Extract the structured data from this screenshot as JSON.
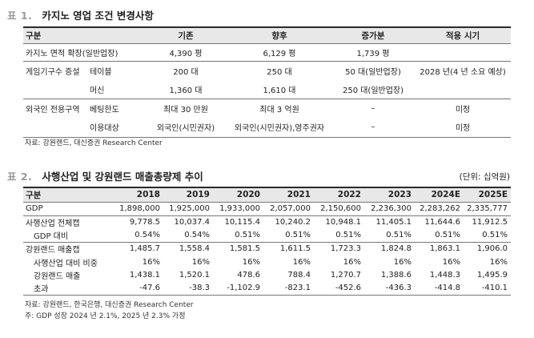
{
  "table1": {
    "number": "표 1.",
    "title": "카지노 영업 조건 변경사항",
    "headers": [
      "구분",
      "기존",
      "향후",
      "증가분",
      "적용 시기"
    ],
    "rows": [
      {
        "c1": "카지노 면적 확장(일반업장)",
        "c2": "",
        "before": "4,390 평",
        "after": "6,129 평",
        "inc": "1,739 평",
        "when": ""
      },
      {
        "c1": "게임기구수 증설",
        "c2": "테이블",
        "before": "200 대",
        "after": "250 대",
        "inc": "50 대(일반업장)",
        "when": "2028 년(4 년 소요 예상)"
      },
      {
        "c1": "",
        "c2": "머신",
        "before": "1,360 대",
        "after": "1,610 대",
        "inc": "250 대(일반업장)",
        "when": ""
      },
      {
        "c1": "외국인 전용구역",
        "c2": "베팅한도",
        "before": "최대 30 만원",
        "after": "최대 3 억원",
        "inc": "–",
        "when": "미정"
      },
      {
        "c1": "",
        "c2": "이용대상",
        "before": "외국인(시민권자)",
        "after": "외국인(시민권자),영주권자",
        "inc": "–",
        "when": "미정"
      }
    ],
    "source": "자료: 강원랜드, 대신증권 Research Center"
  },
  "table2": {
    "number": "표 2.",
    "title": "사행산업 및 강원랜드 매출총량제 추이",
    "unit": "(단위: 십억원)",
    "header_label": "구분",
    "years": [
      "2018",
      "2019",
      "2020",
      "2021",
      "2022",
      "2023",
      "2024E",
      "2025E"
    ],
    "rows": [
      {
        "label": "GDP",
        "values": [
          "1,898,000",
          "1,925,000",
          "1,933,000",
          "2,057,000",
          "2,150,600",
          "2,236,300",
          "2,283,262",
          "2,335,777"
        ]
      },
      {
        "label": "사행산업 전체캡",
        "values": [
          "9,778.5",
          "10,037.4",
          "10,115.4",
          "10,240.2",
          "10,948.1",
          "11,405.1",
          "11,644.6",
          "11,912.5"
        ]
      },
      {
        "label": "GDP 대비",
        "values": [
          "0.54%",
          "0.54%",
          "0.51%",
          "0.51%",
          "0.51%",
          "0.51%",
          "0.51%",
          "0.51%"
        ]
      },
      {
        "label": "강원랜드 매출캡",
        "values": [
          "1,485.7",
          "1,558.4",
          "1,581.5",
          "1,611.5",
          "1,723.3",
          "1,824.8",
          "1,863.1",
          "1,906.0"
        ]
      },
      {
        "label": "사행산업 대비 비중",
        "values": [
          "16%",
          "16%",
          "16%",
          "16%",
          "16%",
          "16%",
          "16%",
          "16%"
        ]
      },
      {
        "label": "강원랜드 매출",
        "values": [
          "1,438.1",
          "1,520.1",
          "478.6",
          "788.4",
          "1,270.7",
          "1,388.6",
          "1,448.3",
          "1,495.9"
        ]
      },
      {
        "label": "초과",
        "values": [
          "-47.6",
          "-38.3",
          "-1,102.9",
          "-823.1",
          "-452.6",
          "-436.3",
          "-414.8",
          "-410.1"
        ]
      }
    ],
    "source": "자료: 강원랜드, 한국은행, 대신증권 Research Center",
    "footnote": "주: GDP 성장 2024 년 2.1%, 2025 년 2.3% 가정"
  }
}
